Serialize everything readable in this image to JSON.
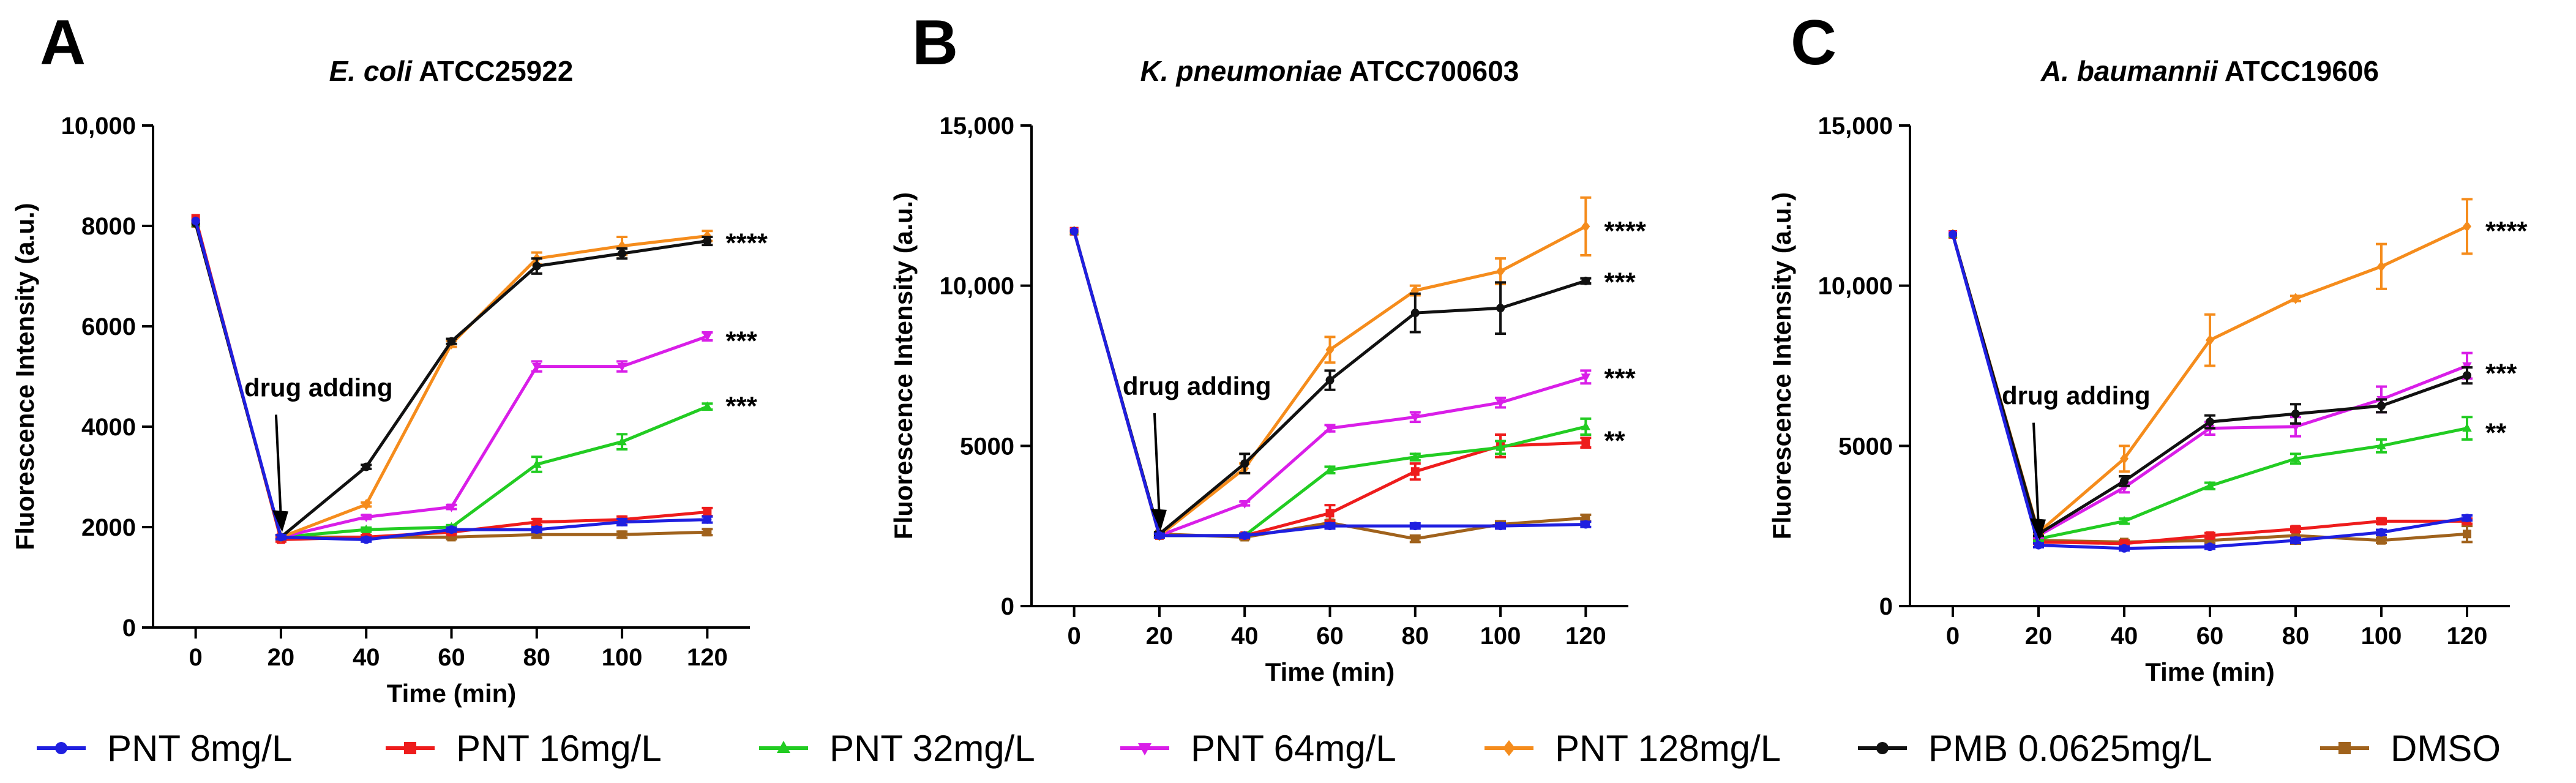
{
  "chart_data": [
    {
      "type": "line",
      "panel": "A",
      "title_italic": "E. coli",
      "title_rest": "ATCC25922",
      "xlabel": "Time (min)",
      "ylabel": "Fluorescence Intensity (a.u.)",
      "x": [
        0,
        20,
        40,
        60,
        80,
        100,
        120
      ],
      "xlim": [
        -10,
        130
      ],
      "ylim": [
        0,
        10000
      ],
      "yticks": [
        0,
        2000,
        4000,
        6000,
        8000,
        10000
      ],
      "ytick_labels": [
        "0",
        "2000",
        "4000",
        "6000",
        "8000",
        "10,000"
      ],
      "annotation": "drug adding",
      "series": [
        {
          "name": "PNT 8mg/L",
          "values": [
            8100,
            1800,
            1750,
            1950,
            1950,
            2100,
            2150
          ],
          "err": [
            0,
            40,
            40,
            40,
            50,
            60,
            60
          ]
        },
        {
          "name": "PNT 16mg/L",
          "values": [
            8150,
            1750,
            1800,
            1900,
            2100,
            2150,
            2300
          ],
          "err": [
            0,
            40,
            40,
            40,
            60,
            60,
            80
          ]
        },
        {
          "name": "PNT 32mg/L",
          "values": [
            8050,
            1800,
            1950,
            2000,
            3250,
            3700,
            4400
          ],
          "err": [
            0,
            40,
            40,
            40,
            150,
            150,
            60
          ]
        },
        {
          "name": "PNT 64mg/L",
          "values": [
            8050,
            1800,
            2200,
            2400,
            5200,
            5200,
            5800
          ],
          "err": [
            0,
            40,
            40,
            40,
            100,
            100,
            80
          ]
        },
        {
          "name": "PNT 128mg/L",
          "values": [
            8050,
            1800,
            2450,
            5650,
            7350,
            7600,
            7800
          ],
          "err": [
            0,
            40,
            40,
            60,
            120,
            180,
            100
          ]
        },
        {
          "name": "PMB 0.0625mg/L",
          "values": [
            8050,
            1800,
            3200,
            5700,
            7200,
            7450,
            7700
          ],
          "err": [
            0,
            40,
            40,
            50,
            150,
            100,
            80
          ]
        },
        {
          "name": "DMSO",
          "values": [
            8050,
            1800,
            1800,
            1800,
            1850,
            1850,
            1900
          ],
          "err": [
            0,
            40,
            40,
            40,
            60,
            60,
            60
          ]
        }
      ],
      "significance": [
        {
          "label": "****",
          "y": 7750
        },
        {
          "label": "***",
          "y": 5800
        },
        {
          "label": "***",
          "y": 4500
        }
      ]
    },
    {
      "type": "line",
      "panel": "B",
      "title_italic": "K. pneumoniae",
      "title_rest": "ATCC700603",
      "xlabel": "Time (min)",
      "ylabel": "Fluorescence Intensity (a.u.)",
      "x": [
        0,
        20,
        40,
        60,
        80,
        100,
        120
      ],
      "xlim": [
        -10,
        130
      ],
      "ylim": [
        0,
        15000
      ],
      "yticks": [
        0,
        5000,
        10000,
        15000
      ],
      "ytick_labels": [
        "0",
        "5000",
        "10,000",
        "15,000"
      ],
      "annotation": "drug adding",
      "series": [
        {
          "name": "PNT 8mg/L",
          "values": [
            11700,
            2200,
            2200,
            2500,
            2500,
            2500,
            2550
          ],
          "err": [
            0,
            60,
            60,
            80,
            80,
            80,
            80
          ]
        },
        {
          "name": "PNT 16mg/L",
          "values": [
            11700,
            2200,
            2200,
            2900,
            4200,
            5000,
            5100
          ],
          "err": [
            0,
            60,
            60,
            250,
            250,
            350,
            150
          ]
        },
        {
          "name": "PNT 32mg/L",
          "values": [
            11700,
            2200,
            2200,
            4250,
            4650,
            4950,
            5600
          ],
          "err": [
            0,
            60,
            60,
            100,
            100,
            200,
            250
          ]
        },
        {
          "name": "PNT 64mg/L",
          "values": [
            11700,
            2200,
            3200,
            5550,
            5900,
            6350,
            7150
          ],
          "err": [
            0,
            60,
            60,
            100,
            150,
            150,
            200
          ]
        },
        {
          "name": "PNT 128mg/L",
          "values": [
            11700,
            2200,
            4300,
            8000,
            9850,
            10450,
            11850
          ],
          "err": [
            0,
            60,
            150,
            400,
            150,
            400,
            900
          ]
        },
        {
          "name": "PMB 0.0625mg/L",
          "values": [
            11700,
            2250,
            4450,
            7050,
            9150,
            9300,
            10150
          ],
          "err": [
            0,
            60,
            300,
            300,
            600,
            800,
            80
          ]
        },
        {
          "name": "DMSO",
          "values": [
            11700,
            2250,
            2150,
            2600,
            2100,
            2550,
            2750
          ],
          "err": [
            0,
            60,
            60,
            80,
            100,
            100,
            100
          ]
        }
      ],
      "significance": [
        {
          "label": "****",
          "y": 11850
        },
        {
          "label": "***",
          "y": 10250
        },
        {
          "label": "***",
          "y": 7250
        },
        {
          "label": "**",
          "y": 5300
        }
      ]
    },
    {
      "type": "line",
      "panel": "C",
      "title_italic": "A. baumannii",
      "title_rest": "ATCC19606",
      "xlabel": "Time (min)",
      "ylabel": "Fluorescence Intensity (a.u.)",
      "x": [
        0,
        20,
        40,
        60,
        80,
        100,
        120
      ],
      "xlim": [
        -10,
        130
      ],
      "ylim": [
        0,
        15000
      ],
      "yticks": [
        0,
        5000,
        10000,
        15000
      ],
      "ytick_labels": [
        "0",
        "5000",
        "10,000",
        "15,000"
      ],
      "annotation": "drug adding",
      "series": [
        {
          "name": "PNT 8mg/L",
          "values": [
            11600,
            1900,
            1800,
            1850,
            2050,
            2300,
            2750
          ],
          "err": [
            0,
            60,
            60,
            60,
            80,
            80,
            80
          ]
        },
        {
          "name": "PNT 16mg/L",
          "values": [
            11600,
            2000,
            1950,
            2200,
            2400,
            2650,
            2650
          ],
          "err": [
            0,
            60,
            60,
            80,
            80,
            80,
            80
          ]
        },
        {
          "name": "PNT 32mg/L",
          "values": [
            11600,
            2100,
            2650,
            3750,
            4600,
            5000,
            5550
          ],
          "err": [
            0,
            60,
            80,
            100,
            150,
            200,
            350
          ]
        },
        {
          "name": "PNT 64mg/L",
          "values": [
            11600,
            2200,
            3700,
            5550,
            5600,
            6450,
            7500
          ],
          "err": [
            0,
            60,
            150,
            200,
            300,
            400,
            400
          ]
        },
        {
          "name": "PNT 128mg/L",
          "values": [
            11600,
            2300,
            4600,
            8300,
            9600,
            10600,
            11850
          ],
          "err": [
            0,
            60,
            400,
            800,
            80,
            700,
            850
          ]
        },
        {
          "name": "PMB 0.0625mg/L",
          "values": [
            11600,
            2250,
            3900,
            5750,
            6000,
            6250,
            7200
          ],
          "err": [
            0,
            60,
            150,
            200,
            300,
            200,
            250
          ]
        },
        {
          "name": "DMSO",
          "values": [
            11600,
            2050,
            2000,
            2050,
            2200,
            2050,
            2250
          ],
          "err": [
            0,
            60,
            60,
            80,
            250,
            80,
            250
          ]
        }
      ],
      "significance": [
        {
          "label": "****",
          "y": 11850
        },
        {
          "label": "***",
          "y": 7400
        },
        {
          "label": "**",
          "y": 5550
        }
      ]
    }
  ],
  "legend": [
    {
      "name": "PNT 8mg/L",
      "color": "#1f1fe0",
      "marker": "circle"
    },
    {
      "name": "PNT 16mg/L",
      "color": "#ee1c1c",
      "marker": "square"
    },
    {
      "name": "PNT 32mg/L",
      "color": "#22cc22",
      "marker": "triangle-up"
    },
    {
      "name": "PNT 64mg/L",
      "color": "#d91ee8",
      "marker": "triangle-down"
    },
    {
      "name": "PNT 128mg/L",
      "color": "#f58c1c",
      "marker": "diamond"
    },
    {
      "name": "PMB 0.0625mg/L",
      "color": "#111111",
      "marker": "circle"
    },
    {
      "name": "DMSO",
      "color": "#a0621c",
      "marker": "square"
    }
  ]
}
